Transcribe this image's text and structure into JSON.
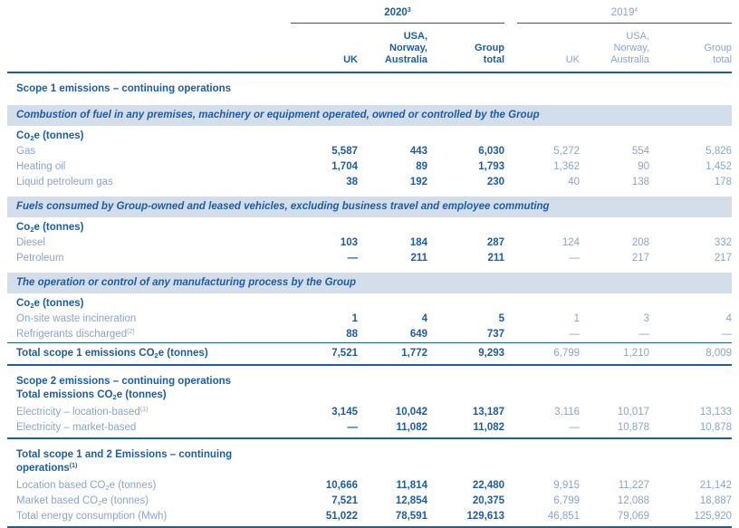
{
  "colors": {
    "dark_blue": "#1b5da9",
    "light_blue": "#8aa4cb",
    "banner_bg": "#d4deeb"
  },
  "header": {
    "year_2020": {
      "label": "2020",
      "sup": "3"
    },
    "year_2019": {
      "label": "2019",
      "sup": "4"
    },
    "columns_2020": [
      "UK",
      "USA,\nNorway,\nAustralia",
      "Group\ntotal"
    ],
    "columns_2019": [
      "UK",
      "USA,\nNorway,\nAustralia",
      "Group\ntotal"
    ]
  },
  "column_keys": [
    "uk-2020",
    "usa-norway-australia-2020",
    "group-total-2020",
    "uk-2019",
    "usa-norway-australia-2019",
    "group-total-2019"
  ],
  "rows": [
    {
      "kind": "section",
      "name": "section-scope1",
      "lines": [
        [
          {
            "t": "Scope 1 emissions – continuing operations"
          }
        ]
      ]
    },
    {
      "kind": "banner",
      "name": "banner-combustion",
      "parts": [
        {
          "t": "Combustion of fuel in any premises, machinery or equipment operated, owned or controlled by the Group"
        }
      ]
    },
    {
      "kind": "subhead",
      "name": "subhead-co2e-1",
      "parts": [
        {
          "t": "Co"
        },
        {
          "sub": "2"
        },
        {
          "t": "e (tonnes)"
        }
      ]
    },
    {
      "kind": "data",
      "name": "row-gas",
      "label": [
        {
          "t": "Gas"
        }
      ],
      "values": [
        "5,587",
        "443",
        "6,030",
        "5,272",
        "554",
        "5,826"
      ]
    },
    {
      "kind": "data",
      "name": "row-heating-oil",
      "label": [
        {
          "t": "Heating oil"
        }
      ],
      "values": [
        "1,704",
        "89",
        "1,793",
        "1,362",
        "90",
        "1,452"
      ]
    },
    {
      "kind": "data",
      "name": "row-liquid-petroleum-gas",
      "label": [
        {
          "t": "Liquid petroleum gas"
        }
      ],
      "values": [
        "38",
        "192",
        "230",
        "40",
        "138",
        "178"
      ]
    },
    {
      "kind": "banner",
      "name": "banner-vehicle-fuels",
      "parts": [
        {
          "t": "Fuels consumed by Group-owned and leased vehicles, excluding business travel and employee commuting"
        }
      ]
    },
    {
      "kind": "subhead",
      "name": "subhead-co2e-2",
      "parts": [
        {
          "t": "Co"
        },
        {
          "sub": "2"
        },
        {
          "t": "e (tonnes)"
        }
      ]
    },
    {
      "kind": "data",
      "name": "row-diesel",
      "label": [
        {
          "t": "Diesel"
        }
      ],
      "values": [
        "103",
        "184",
        "287",
        "124",
        "208",
        "332"
      ]
    },
    {
      "kind": "data",
      "name": "row-petroleum",
      "label": [
        {
          "t": "Petroleum"
        }
      ],
      "values": [
        "—",
        "211",
        "211",
        "—",
        "217",
        "217"
      ]
    },
    {
      "kind": "banner",
      "name": "banner-manufacturing",
      "parts": [
        {
          "t": "The operation or control of any manufacturing process by the Group"
        }
      ]
    },
    {
      "kind": "subhead",
      "name": "subhead-co2e-3",
      "parts": [
        {
          "t": "Co"
        },
        {
          "sub": "2"
        },
        {
          "t": "e (tonnes)"
        }
      ]
    },
    {
      "kind": "data",
      "name": "row-onsite-waste-incineration",
      "label": [
        {
          "t": "On-site waste incineration"
        }
      ],
      "values": [
        "1",
        "4",
        "5",
        "1",
        "3",
        "4"
      ]
    },
    {
      "kind": "data",
      "name": "row-refrigerants-discharged",
      "label": [
        {
          "t": "Refrigerants discharged"
        },
        {
          "sup": "(2)"
        }
      ],
      "values": [
        "88",
        "649",
        "737",
        "—",
        "—",
        "—"
      ]
    },
    {
      "kind": "total",
      "name": "row-total-scope1-emissions",
      "label": [
        {
          "t": "Total scope 1 emissions CO"
        },
        {
          "sub": "2"
        },
        {
          "t": "e (tonnes)"
        }
      ],
      "values": [
        "7,521",
        "1,772",
        "9,293",
        "6,799",
        "1,210",
        "8,009"
      ]
    },
    {
      "kind": "section",
      "name": "section-scope2",
      "lines": [
        [
          {
            "t": "Scope 2 emissions – continuing operations"
          }
        ],
        [
          {
            "t": "Total emissions CO"
          },
          {
            "sub": "2"
          },
          {
            "t": "e (tonnes)"
          }
        ]
      ]
    },
    {
      "kind": "data",
      "name": "row-electricity-location-based",
      "label": [
        {
          "t": "Electricity – location-based"
        },
        {
          "sup": "(1)"
        }
      ],
      "values": [
        "3,145",
        "10,042",
        "13,187",
        "3,116",
        "10,017",
        "13,133"
      ]
    },
    {
      "kind": "data",
      "name": "row-electricity-market-based",
      "rule": "bottom",
      "label": [
        {
          "t": "Electricity – market-based"
        }
      ],
      "values": [
        "—",
        "11,082",
        "11,082",
        "—",
        "10,878",
        "10,878"
      ]
    },
    {
      "kind": "section",
      "name": "section-total-scope-1-and-2",
      "lines": [
        [
          {
            "t": "Total scope 1 and 2 Emissions – continuing"
          }
        ],
        [
          {
            "t": "operations"
          },
          {
            "sup": "(1)"
          }
        ]
      ]
    },
    {
      "kind": "data",
      "name": "row-location-based-co2e",
      "label": [
        {
          "t": "Location based CO"
        },
        {
          "sub": "2"
        },
        {
          "t": "e (tonnes)"
        }
      ],
      "values": [
        "10,666",
        "11,814",
        "22,480",
        "9,915",
        "11,227",
        "21,142"
      ]
    },
    {
      "kind": "data",
      "name": "row-market-based-co2e",
      "label": [
        {
          "t": "Market based CO"
        },
        {
          "sub": "2"
        },
        {
          "t": "e (tonnes)"
        }
      ],
      "values": [
        "7,521",
        "12,854",
        "20,375",
        "6,799",
        "12,088",
        "18,887"
      ]
    },
    {
      "kind": "data",
      "name": "row-total-energy-consumption",
      "rule": "bottom",
      "label": [
        {
          "t": "Total energy consumption (Mwh)"
        }
      ],
      "values": [
        "51,022",
        "78,591",
        "129,613",
        "46,851",
        "79,069",
        "125,920"
      ]
    }
  ]
}
